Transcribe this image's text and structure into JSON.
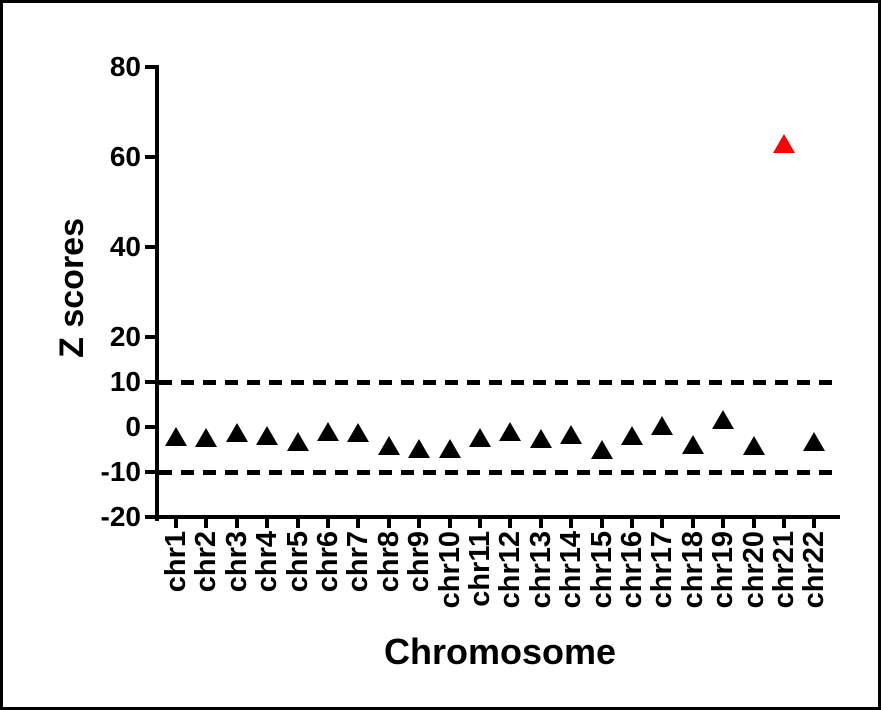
{
  "figure": {
    "background_color": "#ffffff",
    "border_color": "#000000"
  },
  "chart_data": {
    "type": "scatter",
    "title": "",
    "xlabel": "Chromosome",
    "ylabel": "Z scores",
    "categories": [
      "chr1",
      "chr2",
      "chr3",
      "chr4",
      "chr5",
      "chr6",
      "chr7",
      "chr8",
      "chr9",
      "chr10",
      "chr11",
      "chr12",
      "chr13",
      "chr14",
      "chr15",
      "chr16",
      "chr17",
      "chr18",
      "chr19",
      "chr20",
      "chr21",
      "chr22"
    ],
    "values": [
      -2.3,
      -2.5,
      -1.4,
      -2.1,
      -3.3,
      -1.0,
      -1.3,
      -4.2,
      -4.8,
      -4.9,
      -2.4,
      -1.2,
      -2.6,
      -1.8,
      -5.0,
      -2.1,
      0.2,
      -3.9,
      1.6,
      -4.3,
      63.0,
      -3.3
    ],
    "point_colors": [
      "#000000",
      "#000000",
      "#000000",
      "#000000",
      "#000000",
      "#000000",
      "#000000",
      "#000000",
      "#000000",
      "#000000",
      "#000000",
      "#000000",
      "#000000",
      "#000000",
      "#000000",
      "#000000",
      "#000000",
      "#000000",
      "#000000",
      "#000000",
      "#fe0000",
      "#000000"
    ],
    "marker": "triangle",
    "default_color": "#000000",
    "highlight_color": "#fe0000",
    "highlight_category": "chr21",
    "ylim": [
      -20,
      80
    ],
    "yticks": [
      80,
      60,
      40,
      20,
      10,
      0,
      -10,
      -20
    ],
    "reference_lines": [
      {
        "y": 10,
        "style": "dashed",
        "color": "#000000"
      },
      {
        "y": -10,
        "style": "dashed",
        "color": "#000000"
      }
    ],
    "grid": false,
    "legend": false
  }
}
